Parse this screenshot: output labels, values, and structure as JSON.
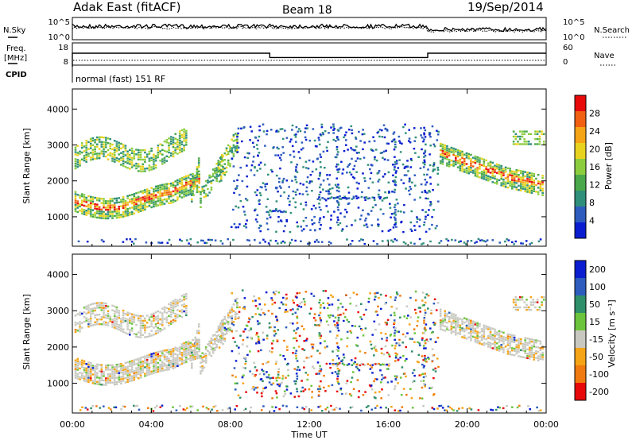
{
  "header": {
    "radar": "Adak East (fitACF)",
    "beam": "Beam 18",
    "date": "19/Sep/2014"
  },
  "noise_panel": {
    "left_label": "N.Sky",
    "right_label": "N.Search",
    "ticks_left": [
      "10^5",
      "10^0"
    ],
    "ticks_right": [
      "10^5",
      "10^0"
    ]
  },
  "freq_panel": {
    "left_label_1": "Freq.",
    "left_label_2": "[MHz]",
    "right_label": "Nave",
    "ticks_left": [
      "18",
      "8"
    ],
    "ticks_right": [
      "60",
      "0"
    ],
    "freq_steps": [
      {
        "t0": 0,
        "t1": 10,
        "mhz": 13.5
      },
      {
        "t0": 10,
        "t1": 18,
        "mhz": 10.8
      },
      {
        "t0": 18,
        "t1": 24,
        "mhz": 13.5
      }
    ]
  },
  "cpid_panel": {
    "label": "CPID",
    "text": "normal (fast) 151 RF"
  },
  "x_axis": {
    "label": "Time UT",
    "ticks": [
      "00:00",
      "04:00",
      "08:00",
      "12:00",
      "16:00",
      "20:00",
      "00:00"
    ],
    "range_hours": [
      0,
      24
    ]
  },
  "chart_data": [
    {
      "type": "heatmap",
      "title": "",
      "ylabel": "Slant Range [km]",
      "xlabel": "",
      "y_ticks": [
        "1000",
        "2000",
        "3000",
        "4000"
      ],
      "ylim": [
        180,
        4560
      ],
      "colorbar": {
        "label": "Power [dB]",
        "ticks": [
          "4",
          "8",
          "12",
          "16",
          "20",
          "24",
          "28"
        ],
        "range": [
          0,
          32
        ],
        "colors": [
          "#0a1ed0",
          "#2d5cbe",
          "#2f8f7a",
          "#4aa84a",
          "#8ccd3e",
          "#e8d21e",
          "#f5a416",
          "#f06010",
          "#e80a0a"
        ]
      },
      "echo_bands": [
        {
          "t0": 0.0,
          "t1": 6.4,
          "range_km": [
            1250,
            1800
          ],
          "level": "high"
        },
        {
          "t0": 0.0,
          "t1": 5.8,
          "range_km": [
            2250,
            3400
          ],
          "level": "mid"
        },
        {
          "t0": 6.1,
          "t1": 8.3,
          "range_km": [
            1400,
            3200
          ],
          "level": "mid"
        },
        {
          "t0": 18.6,
          "t1": 24.0,
          "range_km": [
            1500,
            3100
          ],
          "level": "mid"
        }
      ]
    },
    {
      "type": "heatmap",
      "title": "",
      "ylabel": "Slant Range [km]",
      "xlabel": "Time UT",
      "y_ticks": [
        "1000",
        "2000",
        "3000",
        "4000"
      ],
      "ylim": [
        180,
        4560
      ],
      "colorbar": {
        "label": "Velocity [m s⁻¹]",
        "ticks": [
          "200",
          "100",
          "50",
          "15",
          "-15",
          "-50",
          "-100",
          "-200"
        ],
        "range": [
          -250,
          250
        ],
        "colors": [
          "#0a1ed0",
          "#2d5cbe",
          "#2f8f6a",
          "#6cc43c",
          "#c8c8c0",
          "#f5a416",
          "#f07a10",
          "#e80a0a"
        ]
      }
    }
  ]
}
